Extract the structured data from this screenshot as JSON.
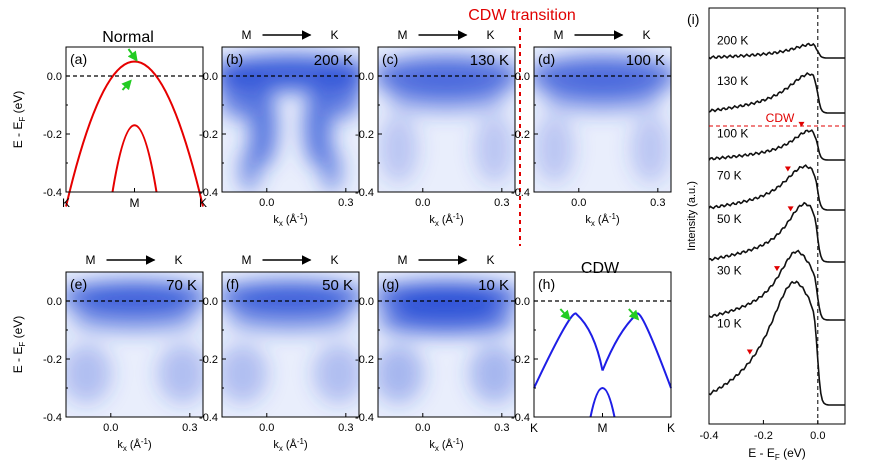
{
  "header": {
    "normal_title": "Normal",
    "cdw_transition": "CDW transition",
    "cdw_title": "CDW"
  },
  "colors": {
    "band": "#e60000",
    "band_cdw": "#1e1ee6",
    "arpes": "#2a4fd6",
    "accent_red": "#e00000",
    "arrow_green": "#22cc22"
  },
  "axes": {
    "y_label_main": "E - E",
    "y_label_sub": "F",
    "y_label_unit": " (eV)",
    "y_ticks": [
      "0.0",
      "-0.2",
      "-0.4"
    ],
    "k_ticks": [
      "0.0",
      "0.3"
    ],
    "kx_label_main": "k",
    "kx_label_sub": "x",
    "kx_label_unit": " (Å",
    "kx_label_sup": "-1",
    "kx_label_close": ")",
    "sym_ticks": [
      "K",
      "M",
      "K"
    ],
    "arrow_left": "M",
    "arrow_right": "K"
  },
  "panels": [
    {
      "id": "a",
      "label": "(a)",
      "kind": "schematic-normal",
      "temp": ""
    },
    {
      "id": "b",
      "label": "(b)",
      "kind": "arpes",
      "temp": "200 K"
    },
    {
      "id": "c",
      "label": "(c)",
      "kind": "arpes",
      "temp": "130 K"
    },
    {
      "id": "d",
      "label": "(d)",
      "kind": "arpes",
      "temp": "100 K"
    },
    {
      "id": "e",
      "label": "(e)",
      "kind": "arpes",
      "temp": "70 K"
    },
    {
      "id": "f",
      "label": "(f)",
      "kind": "arpes",
      "temp": "50 K"
    },
    {
      "id": "g",
      "label": "(g)",
      "kind": "arpes",
      "temp": "10 K"
    },
    {
      "id": "h",
      "label": "(h)",
      "kind": "schematic-cdw",
      "temp": ""
    }
  ],
  "chart_data": {
    "type": "line",
    "panel_label": "(i)",
    "xlabel": "E - E",
    "xlabel_sub": "F",
    "xlabel_unit": " (eV)",
    "ylabel": "Intensity (a.u.)",
    "xlim": [
      -0.4,
      0.1
    ],
    "x_ticks": [
      "-0.4",
      "-0.2",
      "0.0"
    ],
    "cdw_label": "CDW",
    "series": [
      {
        "name": "200 K",
        "temp_label": "200 K"
      },
      {
        "name": "130 K",
        "temp_label": "130 K"
      },
      {
        "name": "100 K",
        "temp_label": "100 K"
      },
      {
        "name": "70 K",
        "temp_label": "70 K"
      },
      {
        "name": "50 K",
        "temp_label": "50 K"
      },
      {
        "name": "30 K",
        "temp_label": "30 K"
      },
      {
        "name": "10 K",
        "temp_label": "10 K"
      }
    ]
  }
}
